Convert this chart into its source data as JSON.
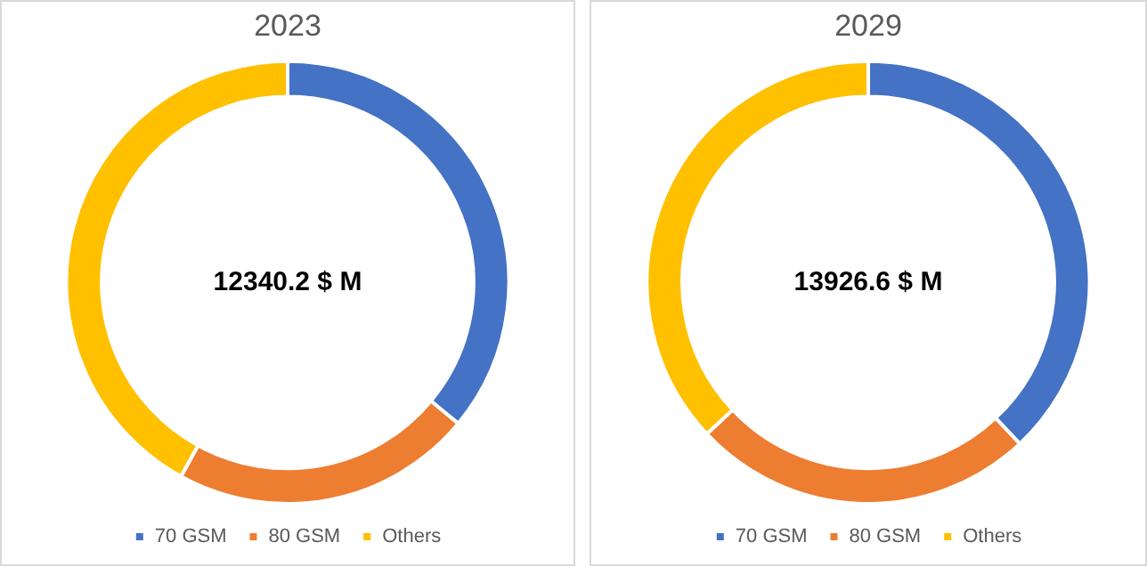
{
  "chart_data": [
    {
      "type": "donut",
      "title": "2023",
      "categories": [
        "70 GSM",
        "80 GSM",
        "Others"
      ],
      "values": [
        36,
        22,
        42
      ],
      "colors": [
        "#4472c4",
        "#ed7d31",
        "#ffc000"
      ],
      "legend": "bottom",
      "annotations": [
        "12340.2 $ M"
      ]
    },
    {
      "type": "donut",
      "title": "2029",
      "categories": [
        "70 GSM",
        "80 GSM",
        "Others"
      ],
      "values": [
        38,
        25,
        37
      ],
      "colors": [
        "#4472c4",
        "#ed7d31",
        "#ffc000"
      ],
      "legend": "bottom",
      "annotations": [
        "13926.6 $ M"
      ]
    }
  ]
}
